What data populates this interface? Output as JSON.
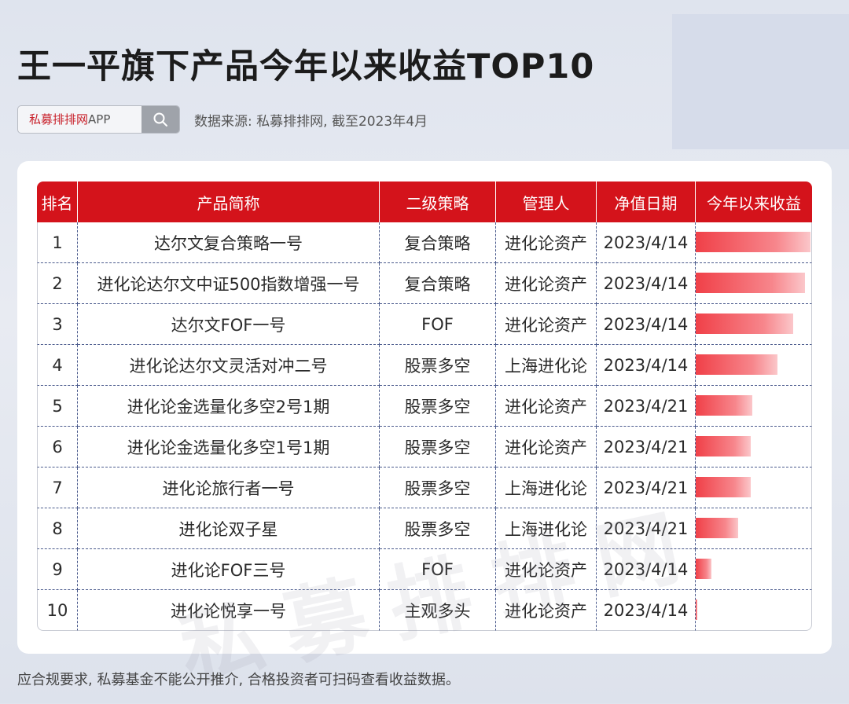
{
  "title": "王一平旗下产品今年以来收益TOP10",
  "search": {
    "brand": "私募排排网",
    "suffix": "APP"
  },
  "source_text": "数据来源: 私募排排网, 截至2023年4月",
  "watermark": "私募排排网",
  "footer": "应合规要求, 私募基金不能公开推介, 合格投资者可扫码查看收益数据。",
  "colors": {
    "header": "#d4131b",
    "bar": "#f04048"
  },
  "chart_data": {
    "type": "table",
    "columns": [
      "排名",
      "产品简称",
      "二级策略",
      "管理人",
      "净值日期",
      "今年以来收益"
    ],
    "rows": [
      {
        "rank": "1",
        "name": "达尔文复合策略一号",
        "strategy": "复合策略",
        "manager": "进化论资产",
        "date": "2023/4/14",
        "ytd": 100
      },
      {
        "rank": "2",
        "name": "进化论达尔文中证500指数增强一号",
        "strategy": "复合策略",
        "manager": "进化论资产",
        "date": "2023/4/14",
        "ytd": 95
      },
      {
        "rank": "3",
        "name": "达尔文FOF一号",
        "strategy": "FOF",
        "manager": "进化论资产",
        "date": "2023/4/14",
        "ytd": 85
      },
      {
        "rank": "4",
        "name": "进化论达尔文灵活对冲二号",
        "strategy": "股票多空",
        "manager": "上海进化论",
        "date": "2023/4/14",
        "ytd": 71
      },
      {
        "rank": "5",
        "name": "进化论金选量化多空2号1期",
        "strategy": "股票多空",
        "manager": "进化论资产",
        "date": "2023/4/21",
        "ytd": 49
      },
      {
        "rank": "6",
        "name": "进化论金选量化多空1号1期",
        "strategy": "股票多空",
        "manager": "进化论资产",
        "date": "2023/4/21",
        "ytd": 48
      },
      {
        "rank": "7",
        "name": "进化论旅行者一号",
        "strategy": "股票多空",
        "manager": "上海进化论",
        "date": "2023/4/21",
        "ytd": 48
      },
      {
        "rank": "8",
        "name": "进化论双子星",
        "strategy": "股票多空",
        "manager": "上海进化论",
        "date": "2023/4/21",
        "ytd": 37
      },
      {
        "rank": "9",
        "name": "进化论FOF三号",
        "strategy": "FOF",
        "manager": "进化论资产",
        "date": "2023/4/14",
        "ytd": 14
      },
      {
        "rank": "10",
        "name": "进化论悦享一号",
        "strategy": "主观多头",
        "manager": "进化论资产",
        "date": "2023/4/14",
        "ytd": 1
      }
    ]
  }
}
